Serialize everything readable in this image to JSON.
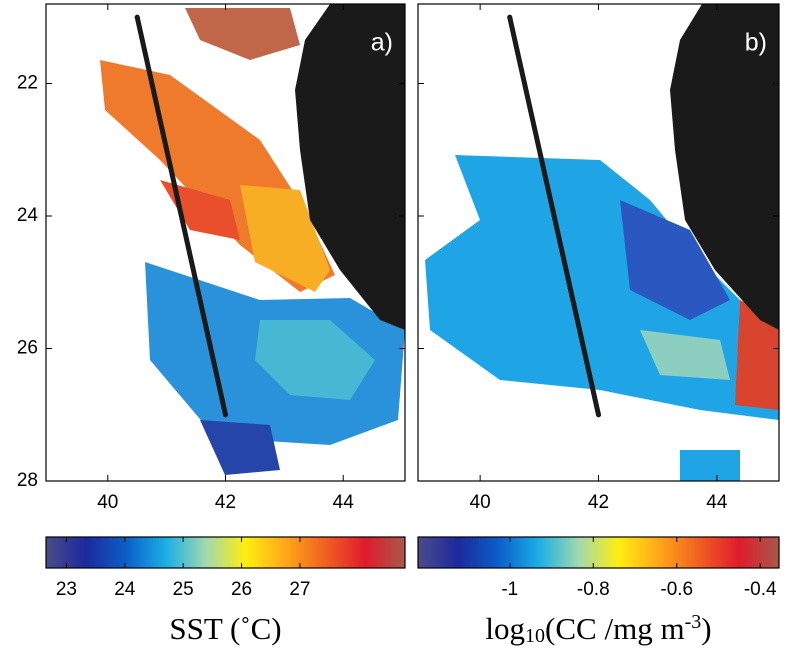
{
  "chart_data": [
    {
      "type": "map",
      "panel_label": "a)",
      "xlim": [
        38.95,
        45.05
      ],
      "ylim": [
        20.8,
        28
      ],
      "yreverse": true,
      "xticks": [
        40,
        42,
        44
      ],
      "yticks": [
        22,
        24,
        26,
        28
      ],
      "ytick_labels": true,
      "track": {
        "x": [
          40.5,
          42
        ],
        "y": [
          21,
          27
        ],
        "color": "#1a1a1a"
      },
      "colorbar": {
        "clim": [
          22.65,
          28.8
        ],
        "ticks": [
          23,
          24,
          25,
          26,
          27
        ],
        "label": [
          {
            "text": "SST (˚C)"
          }
        ],
        "colormap": [
          "#4b4b8a",
          "#1c2a9c",
          "#0b5ec8",
          "#1aaee6",
          "#a0d8b0",
          "#ffee10",
          "#ffa818",
          "#f06020",
          "#e01c2c",
          "#a8584a"
        ]
      }
    },
    {
      "type": "map",
      "panel_label": "b)",
      "xlim": [
        38.95,
        45.05
      ],
      "ylim": [
        20.8,
        28
      ],
      "yreverse": true,
      "xticks": [
        40,
        42,
        44
      ],
      "yticks": [
        22,
        24,
        26,
        28
      ],
      "ytick_labels": false,
      "track": {
        "x": [
          40.5,
          42
        ],
        "y": [
          21,
          27
        ],
        "color": "#1a1a1a"
      },
      "colorbar": {
        "clim": [
          -1.22,
          -0.355
        ],
        "ticks": [
          -1,
          -0.8,
          -0.6,
          -0.4
        ],
        "label": [
          {
            "text": "log"
          },
          {
            "text": "10",
            "style": "sub"
          },
          {
            "text": "(CC /mg m"
          },
          {
            "text": "-3",
            "style": "sup"
          },
          {
            "text": ")"
          }
        ],
        "colormap": [
          "#4b4b8a",
          "#1c2a9c",
          "#0b5ec8",
          "#1aaee6",
          "#a0d8b0",
          "#ffee10",
          "#ffa818",
          "#f06020",
          "#e01c2c",
          "#a8584a"
        ]
      }
    }
  ]
}
